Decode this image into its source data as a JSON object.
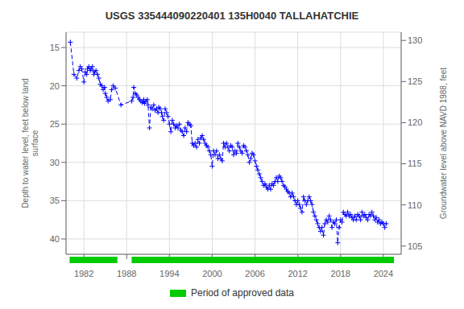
{
  "chart_data": {
    "type": "line",
    "title": "USGS 335444090220401 135H0040 TALLAHATCHIE",
    "y_label": "Depth to water level, feet below land\nsurface",
    "y2_label": "Groundwater level above NAVD 1988, feet",
    "xlim": [
      1979.5,
      2026.5
    ],
    "xticks": [
      1982,
      1988,
      1994,
      2000,
      2006,
      2012,
      2018,
      2024
    ],
    "ylim": [
      42,
      13
    ],
    "yticks": [
      15,
      20,
      25,
      30,
      35,
      40
    ],
    "y2lim": [
      104,
      131
    ],
    "y2ticks": [
      105,
      110,
      115,
      120,
      125,
      130
    ],
    "grid": true,
    "x": [
      1980.1,
      1980.6,
      1981.0,
      1981.3,
      1981.5,
      1981.7,
      1982.0,
      1982.2,
      1982.4,
      1982.5,
      1982.7,
      1982.9,
      1983.0,
      1983.2,
      1983.4,
      1983.5,
      1983.7,
      1983.9,
      1984.1,
      1984.3,
      1984.5,
      1984.7,
      1984.9,
      1985.0,
      1985.2,
      1985.4,
      1985.7,
      1985.9,
      1986.1,
      1986.4,
      1987.2,
      1988.7,
      1988.9,
      1989.0,
      1989.2,
      1989.4,
      1989.6,
      1989.8,
      1990.0,
      1990.2,
      1990.4,
      1990.5,
      1990.7,
      1990.9,
      1991.0,
      1991.2,
      1991.4,
      1991.6,
      1991.8,
      1992.0,
      1992.2,
      1992.4,
      1992.5,
      1992.7,
      1992.9,
      1993.0,
      1993.2,
      1993.4,
      1993.6,
      1993.8,
      1994.0,
      1994.2,
      1994.4,
      1994.6,
      1994.8,
      1995.0,
      1995.2,
      1995.4,
      1995.6,
      1995.8,
      1996.0,
      1996.2,
      1996.4,
      1996.6,
      1996.8,
      1997.0,
      1997.2,
      1997.4,
      1997.6,
      1997.8,
      1998.0,
      1998.2,
      1998.4,
      1998.6,
      1998.8,
      1999.0,
      1999.2,
      1999.4,
      1999.6,
      1999.8,
      2000.0,
      2000.2,
      2000.4,
      2000.6,
      2000.8,
      2001.0,
      2001.2,
      2001.4,
      2001.6,
      2001.8,
      2002.0,
      2002.2,
      2002.4,
      2002.6,
      2002.8,
      2003.0,
      2003.2,
      2003.4,
      2003.6,
      2003.8,
      2004.0,
      2004.2,
      2004.4,
      2004.6,
      2004.8,
      2005.0,
      2005.2,
      2005.4,
      2005.6,
      2005.8,
      2006.0,
      2006.2,
      2006.4,
      2006.6,
      2006.8,
      2007.0,
      2007.2,
      2007.4,
      2007.6,
      2007.8,
      2008.0,
      2008.2,
      2008.4,
      2008.6,
      2008.8,
      2009.0,
      2009.2,
      2009.4,
      2009.6,
      2009.8,
      2010.0,
      2010.2,
      2010.4,
      2010.6,
      2010.8,
      2011.0,
      2011.2,
      2011.4,
      2011.6,
      2011.8,
      2012.0,
      2012.2,
      2012.4,
      2012.6,
      2012.8,
      2013.0,
      2013.2,
      2013.4,
      2013.6,
      2013.8,
      2014.0,
      2014.2,
      2014.4,
      2014.6,
      2014.8,
      2015.0,
      2015.2,
      2015.4,
      2015.6,
      2015.8,
      2016.0,
      2016.2,
      2016.4,
      2016.6,
      2016.8,
      2017.0,
      2017.2,
      2017.4,
      2017.6,
      2017.8,
      2018.0,
      2018.2,
      2018.4,
      2018.6,
      2018.8,
      2019.0,
      2019.2,
      2019.4,
      2019.6,
      2019.8,
      2020.0,
      2020.2,
      2020.4,
      2020.6,
      2020.8,
      2021.0,
      2021.2,
      2021.4,
      2021.6,
      2021.8,
      2022.0,
      2022.2,
      2022.4,
      2022.6,
      2022.8,
      2023.0,
      2023.2,
      2023.4,
      2023.6,
      2023.8,
      2024.0,
      2024.2,
      2024.4
    ],
    "series": [
      {
        "color": "#0000ff",
        "line_style": "dashed",
        "marker": "plus",
        "values": [
          14.3,
          18.5,
          19.0,
          18.0,
          17.5,
          17.8,
          19.5,
          18.2,
          18.5,
          17.8,
          17.5,
          18.0,
          17.8,
          17.5,
          18.5,
          18.2,
          18.0,
          18.5,
          19.0,
          19.8,
          20.0,
          20.5,
          20.2,
          21.0,
          21.5,
          22.0,
          21.8,
          20.5,
          20.0,
          20.3,
          22.5,
          22.0,
          21.5,
          20.2,
          21.0,
          21.2,
          21.5,
          21.8,
          22.0,
          22.2,
          21.8,
          22.3,
          22.0,
          21.8,
          22.5,
          25.5,
          22.8,
          23.0,
          22.5,
          23.2,
          23.0,
          23.5,
          22.8,
          23.0,
          23.5,
          24.0,
          24.5,
          23.0,
          23.5,
          24.0,
          25.0,
          26.0,
          24.5,
          25.0,
          25.5,
          25.2,
          25.5,
          25.0,
          25.8,
          26.0,
          26.5,
          25.5,
          26.0,
          24.8,
          25.0,
          25.2,
          27.5,
          27.8,
          27.5,
          28.0,
          27.0,
          27.5,
          26.8,
          26.5,
          27.0,
          27.5,
          27.8,
          28.0,
          28.5,
          29.0,
          30.5,
          28.5,
          29.0,
          28.5,
          29.5,
          29.0,
          29.5,
          29.8,
          27.5,
          28.0,
          27.5,
          28.0,
          28.5,
          27.8,
          28.0,
          29.0,
          28.5,
          28.8,
          27.5,
          28.0,
          28.5,
          28.8,
          27.8,
          28.0,
          28.5,
          29.0,
          30.0,
          29.5,
          28.8,
          29.0,
          29.8,
          30.5,
          31.0,
          31.5,
          32.0,
          32.5,
          33.0,
          32.8,
          33.2,
          33.5,
          33.0,
          33.5,
          32.8,
          33.0,
          32.5,
          32.0,
          32.5,
          31.8,
          32.0,
          32.5,
          33.0,
          33.2,
          33.5,
          33.8,
          34.0,
          34.5,
          34.0,
          34.5,
          35.0,
          35.5,
          35.0,
          35.5,
          36.0,
          36.5,
          34.5,
          35.0,
          35.5,
          35.0,
          34.5,
          35.0,
          35.5,
          36.5,
          37.0,
          37.5,
          38.0,
          38.5,
          39.0,
          38.5,
          39.5,
          38.0,
          37.5,
          37.8,
          37.0,
          37.5,
          38.5,
          37.8,
          38.0,
          37.5,
          40.5,
          38.5,
          37.5,
          37.8,
          36.5,
          36.8,
          37.0,
          36.5,
          37.0,
          36.8,
          37.2,
          37.5,
          37.0,
          37.5,
          36.8,
          37.0,
          37.5,
          36.5,
          37.0,
          36.8,
          37.2,
          37.5,
          36.8,
          37.0,
          36.5,
          37.0,
          37.5,
          37.2,
          37.8,
          37.5,
          38.0,
          37.8,
          38.0,
          38.5,
          38.0
        ]
      }
    ],
    "approved_periods": {
      "label": "Period of approved data",
      "color": "#00cc00",
      "periods": [
        [
          1980.0,
          1986.7
        ],
        [
          1988.7,
          2025.5
        ]
      ]
    }
  }
}
